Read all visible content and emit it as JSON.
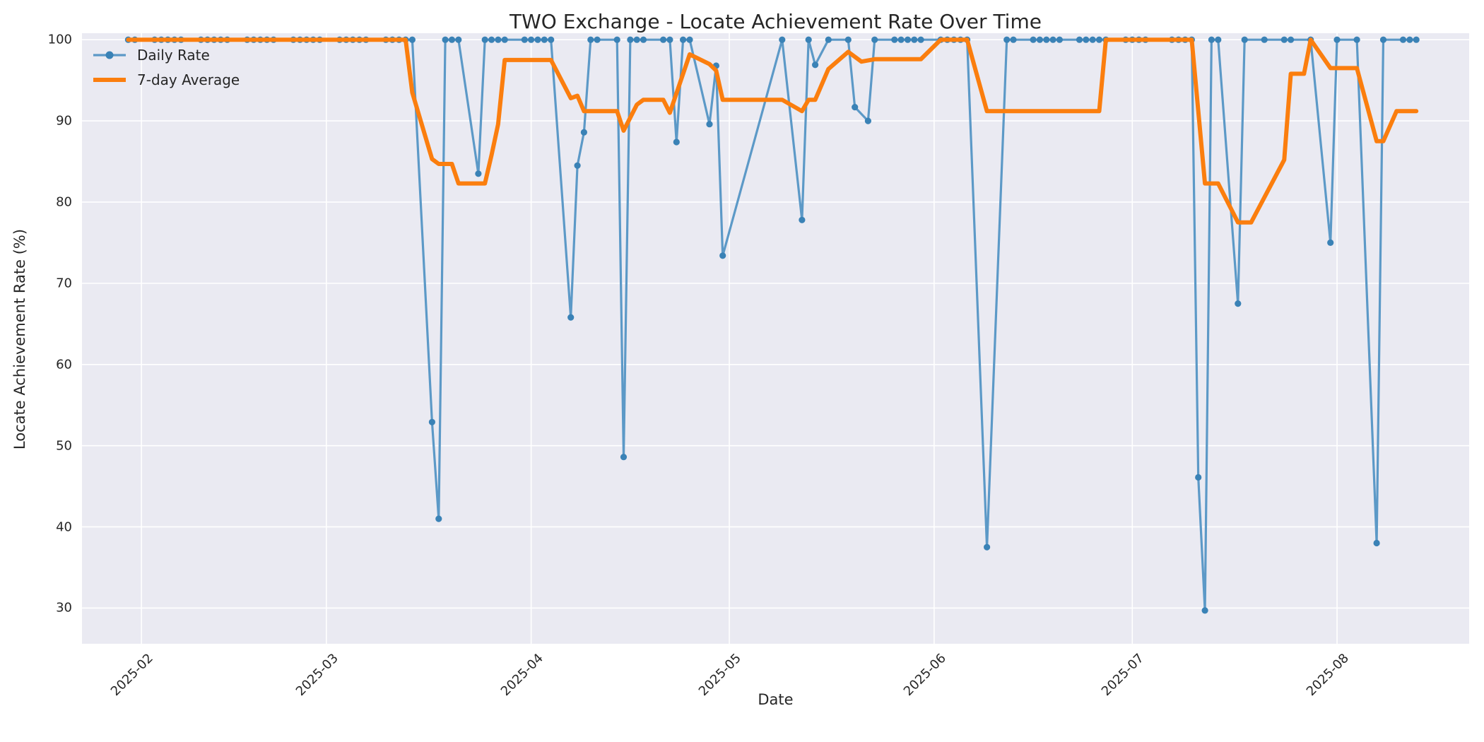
{
  "chart": {
    "title": "TWO Exchange - Locate Achievement Rate Over Time",
    "x_label": "Date",
    "y_label": "Locate Achievement Rate (%)"
  },
  "colors": {
    "figure_background": "#ffffff",
    "plot_background": "#eaeaf2",
    "grid": "#ffffff",
    "daily_line": "#5c99c7",
    "daily_marker": "#3a82b6",
    "average_line": "#fb7e0e",
    "text": "#262626"
  },
  "chart_data": {
    "type": "line",
    "title": "TWO Exchange - Locate Achievement Rate Over Time",
    "xlabel": "Date",
    "ylabel": "Locate Achievement Rate (%)",
    "grid": true,
    "legend_position": "upper left",
    "x_axis": {
      "min_date": "2025-01-23",
      "max_date": "2025-08-21",
      "tick_dates": [
        "2025-02-01",
        "2025-03-01",
        "2025-04-01",
        "2025-05-01",
        "2025-06-01",
        "2025-07-01",
        "2025-08-01"
      ],
      "tick_labels": [
        "2025-02",
        "2025-03",
        "2025-04",
        "2025-05",
        "2025-06",
        "2025-07",
        "2025-08"
      ]
    },
    "y_axis": {
      "min": 25.6,
      "max": 100.8,
      "ticks": [
        30,
        40,
        50,
        60,
        70,
        80,
        90,
        100
      ]
    },
    "series": [
      {
        "name": "Daily Rate",
        "color": "#5c99c7",
        "marker": "circle",
        "marker_color": "#3a82b6",
        "line_width": 3.2,
        "points": [
          [
            "2025-01-30",
            100
          ],
          [
            "2025-01-31",
            100
          ],
          [
            "2025-02-03",
            100
          ],
          [
            "2025-02-04",
            100
          ],
          [
            "2025-02-05",
            100
          ],
          [
            "2025-02-06",
            100
          ],
          [
            "2025-02-07",
            100
          ],
          [
            "2025-02-10",
            100
          ],
          [
            "2025-02-11",
            100
          ],
          [
            "2025-02-12",
            100
          ],
          [
            "2025-02-13",
            100
          ],
          [
            "2025-02-14",
            100
          ],
          [
            "2025-02-17",
            100
          ],
          [
            "2025-02-18",
            100
          ],
          [
            "2025-02-19",
            100
          ],
          [
            "2025-02-20",
            100
          ],
          [
            "2025-02-21",
            100
          ],
          [
            "2025-02-24",
            100
          ],
          [
            "2025-02-25",
            100
          ],
          [
            "2025-02-26",
            100
          ],
          [
            "2025-02-27",
            100
          ],
          [
            "2025-02-28",
            100
          ],
          [
            "2025-03-03",
            100
          ],
          [
            "2025-03-04",
            100
          ],
          [
            "2025-03-05",
            100
          ],
          [
            "2025-03-06",
            100
          ],
          [
            "2025-03-07",
            100
          ],
          [
            "2025-03-10",
            100
          ],
          [
            "2025-03-11",
            100
          ],
          [
            "2025-03-12",
            100
          ],
          [
            "2025-03-13",
            100
          ],
          [
            "2025-03-14",
            100
          ],
          [
            "2025-03-17",
            52.9
          ],
          [
            "2025-03-18",
            41.0
          ],
          [
            "2025-03-19",
            100
          ],
          [
            "2025-03-20",
            100
          ],
          [
            "2025-03-21",
            100
          ],
          [
            "2025-03-24",
            83.5
          ],
          [
            "2025-03-25",
            100
          ],
          [
            "2025-03-26",
            100
          ],
          [
            "2025-03-27",
            100
          ],
          [
            "2025-03-28",
            100
          ],
          [
            "2025-03-31",
            100
          ],
          [
            "2025-04-01",
            100
          ],
          [
            "2025-04-02",
            100
          ],
          [
            "2025-04-03",
            100
          ],
          [
            "2025-04-04",
            100
          ],
          [
            "2025-04-07",
            65.8
          ],
          [
            "2025-04-08",
            84.5
          ],
          [
            "2025-04-09",
            88.6
          ],
          [
            "2025-04-10",
            100
          ],
          [
            "2025-04-11",
            100
          ],
          [
            "2025-04-14",
            100
          ],
          [
            "2025-04-15",
            48.6
          ],
          [
            "2025-04-16",
            100
          ],
          [
            "2025-04-17",
            100
          ],
          [
            "2025-04-18",
            100
          ],
          [
            "2025-04-21",
            100
          ],
          [
            "2025-04-22",
            100
          ],
          [
            "2025-04-23",
            87.4
          ],
          [
            "2025-04-24",
            100
          ],
          [
            "2025-04-25",
            100
          ],
          [
            "2025-04-28",
            89.6
          ],
          [
            "2025-04-29",
            96.8
          ],
          [
            "2025-04-30",
            73.4
          ],
          [
            "2025-05-09",
            100
          ],
          [
            "2025-05-12",
            77.8
          ],
          [
            "2025-05-13",
            100
          ],
          [
            "2025-05-14",
            96.9
          ],
          [
            "2025-05-16",
            100
          ],
          [
            "2025-05-19",
            100
          ],
          [
            "2025-05-20",
            91.7
          ],
          [
            "2025-05-22",
            90.0
          ],
          [
            "2025-05-23",
            100
          ],
          [
            "2025-05-26",
            100
          ],
          [
            "2025-05-27",
            100
          ],
          [
            "2025-05-28",
            100
          ],
          [
            "2025-05-29",
            100
          ],
          [
            "2025-05-30",
            100
          ],
          [
            "2025-06-02",
            100
          ],
          [
            "2025-06-03",
            100
          ],
          [
            "2025-06-04",
            100
          ],
          [
            "2025-06-05",
            100
          ],
          [
            "2025-06-06",
            100
          ],
          [
            "2025-06-09",
            37.5
          ],
          [
            "2025-06-12",
            100
          ],
          [
            "2025-06-13",
            100
          ],
          [
            "2025-06-16",
            100
          ],
          [
            "2025-06-17",
            100
          ],
          [
            "2025-06-18",
            100
          ],
          [
            "2025-06-19",
            100
          ],
          [
            "2025-06-20",
            100
          ],
          [
            "2025-06-23",
            100
          ],
          [
            "2025-06-24",
            100
          ],
          [
            "2025-06-25",
            100
          ],
          [
            "2025-06-26",
            100
          ],
          [
            "2025-06-27",
            100
          ],
          [
            "2025-06-30",
            100
          ],
          [
            "2025-07-01",
            100
          ],
          [
            "2025-07-02",
            100
          ],
          [
            "2025-07-03",
            100
          ],
          [
            "2025-07-07",
            100
          ],
          [
            "2025-07-08",
            100
          ],
          [
            "2025-07-09",
            100
          ],
          [
            "2025-07-10",
            100
          ],
          [
            "2025-07-11",
            46.1
          ],
          [
            "2025-07-12",
            29.7
          ],
          [
            "2025-07-13",
            100
          ],
          [
            "2025-07-14",
            100
          ],
          [
            "2025-07-17",
            67.5
          ],
          [
            "2025-07-18",
            100
          ],
          [
            "2025-07-21",
            100
          ],
          [
            "2025-07-24",
            100
          ],
          [
            "2025-07-25",
            100
          ],
          [
            "2025-07-28",
            100
          ],
          [
            "2025-07-31",
            75.0
          ],
          [
            "2025-08-01",
            100
          ],
          [
            "2025-08-04",
            100
          ],
          [
            "2025-08-07",
            38.0
          ],
          [
            "2025-08-08",
            100
          ],
          [
            "2025-08-11",
            100
          ],
          [
            "2025-08-12",
            100
          ],
          [
            "2025-08-13",
            100
          ]
        ]
      },
      {
        "name": "7-day Average",
        "color": "#fb7e0e",
        "marker": null,
        "line_width": 6,
        "points": [
          [
            "2025-01-30",
            100
          ],
          [
            "2025-03-13",
            100
          ],
          [
            "2025-03-14",
            93.5
          ],
          [
            "2025-03-17",
            85.3
          ],
          [
            "2025-03-18",
            84.7
          ],
          [
            "2025-03-20",
            84.7
          ],
          [
            "2025-03-21",
            82.3
          ],
          [
            "2025-03-25",
            82.3
          ],
          [
            "2025-03-26",
            85.8
          ],
          [
            "2025-03-27",
            89.6
          ],
          [
            "2025-03-28",
            97.5
          ],
          [
            "2025-04-04",
            97.5
          ],
          [
            "2025-04-07",
            92.8
          ],
          [
            "2025-04-08",
            93.1
          ],
          [
            "2025-04-09",
            91.2
          ],
          [
            "2025-04-14",
            91.2
          ],
          [
            "2025-04-15",
            88.8
          ],
          [
            "2025-04-17",
            92.0
          ],
          [
            "2025-04-18",
            92.6
          ],
          [
            "2025-04-21",
            92.6
          ],
          [
            "2025-04-22",
            91.0
          ],
          [
            "2025-04-25",
            98.2
          ],
          [
            "2025-04-28",
            97.0
          ],
          [
            "2025-04-29",
            96.2
          ],
          [
            "2025-04-30",
            92.6
          ],
          [
            "2025-05-09",
            92.6
          ],
          [
            "2025-05-12",
            91.2
          ],
          [
            "2025-05-13",
            92.6
          ],
          [
            "2025-05-14",
            92.6
          ],
          [
            "2025-05-16",
            96.4
          ],
          [
            "2025-05-19",
            98.5
          ],
          [
            "2025-05-21",
            97.3
          ],
          [
            "2025-05-23",
            97.6
          ],
          [
            "2025-05-30",
            97.6
          ],
          [
            "2025-06-02",
            100
          ],
          [
            "2025-06-06",
            100
          ],
          [
            "2025-06-09",
            91.2
          ],
          [
            "2025-06-26",
            91.2
          ],
          [
            "2025-06-27",
            100
          ],
          [
            "2025-07-10",
            100
          ],
          [
            "2025-07-12",
            82.3
          ],
          [
            "2025-07-14",
            82.3
          ],
          [
            "2025-07-17",
            77.5
          ],
          [
            "2025-07-19",
            77.5
          ],
          [
            "2025-07-24",
            85.2
          ],
          [
            "2025-07-25",
            95.8
          ],
          [
            "2025-07-27",
            95.8
          ],
          [
            "2025-07-28",
            100
          ],
          [
            "2025-07-31",
            96.5
          ],
          [
            "2025-08-04",
            96.5
          ],
          [
            "2025-08-07",
            87.5
          ],
          [
            "2025-08-08",
            87.5
          ],
          [
            "2025-08-10",
            91.2
          ],
          [
            "2025-08-13",
            91.2
          ]
        ]
      }
    ]
  }
}
